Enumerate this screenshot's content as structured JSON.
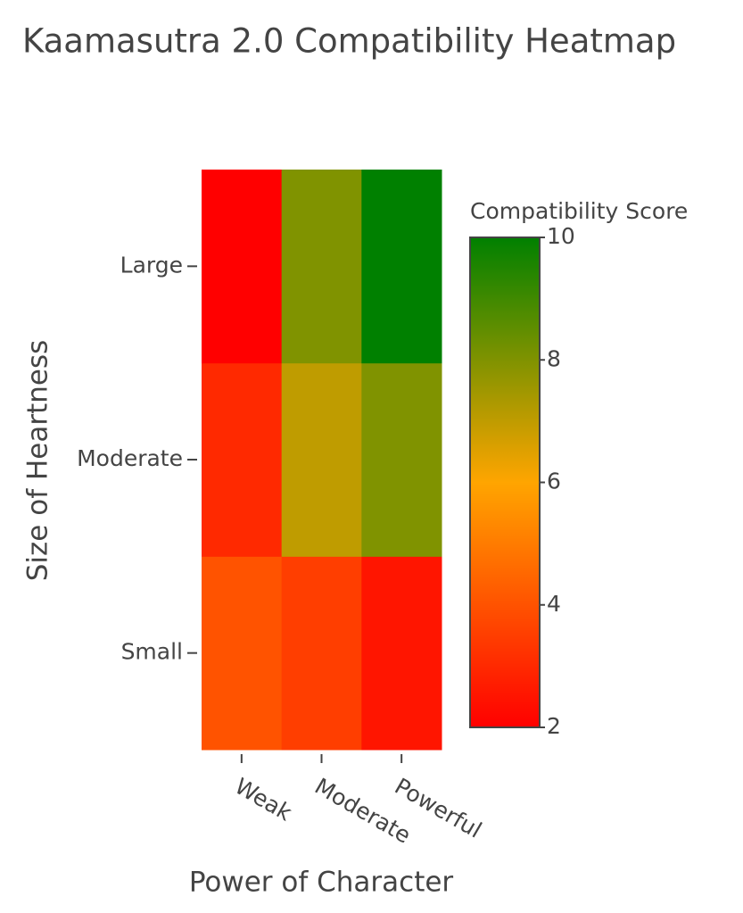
{
  "chart_data": {
    "type": "heatmap",
    "title": "Kaamasutra 2.0 Compatibility Heatmap",
    "x_label": "Power of Character",
    "y_label": "Size of Heartness",
    "x_categories": [
      "Weak",
      "Moderate",
      "Powerful"
    ],
    "y_categories": [
      "Small",
      "Moderate",
      "Large"
    ],
    "values": [
      [
        4,
        3.5,
        2.5
      ],
      [
        3,
        7,
        8
      ],
      [
        2,
        8,
        10
      ]
    ],
    "colorbar_title": "Compatibility Score",
    "zlim": [
      2,
      10
    ],
    "colorbar_ticks": [
      2,
      4,
      6,
      8,
      10
    ],
    "colors": [
      "#ff0000",
      "#ffa500",
      "#008000"
    ]
  }
}
